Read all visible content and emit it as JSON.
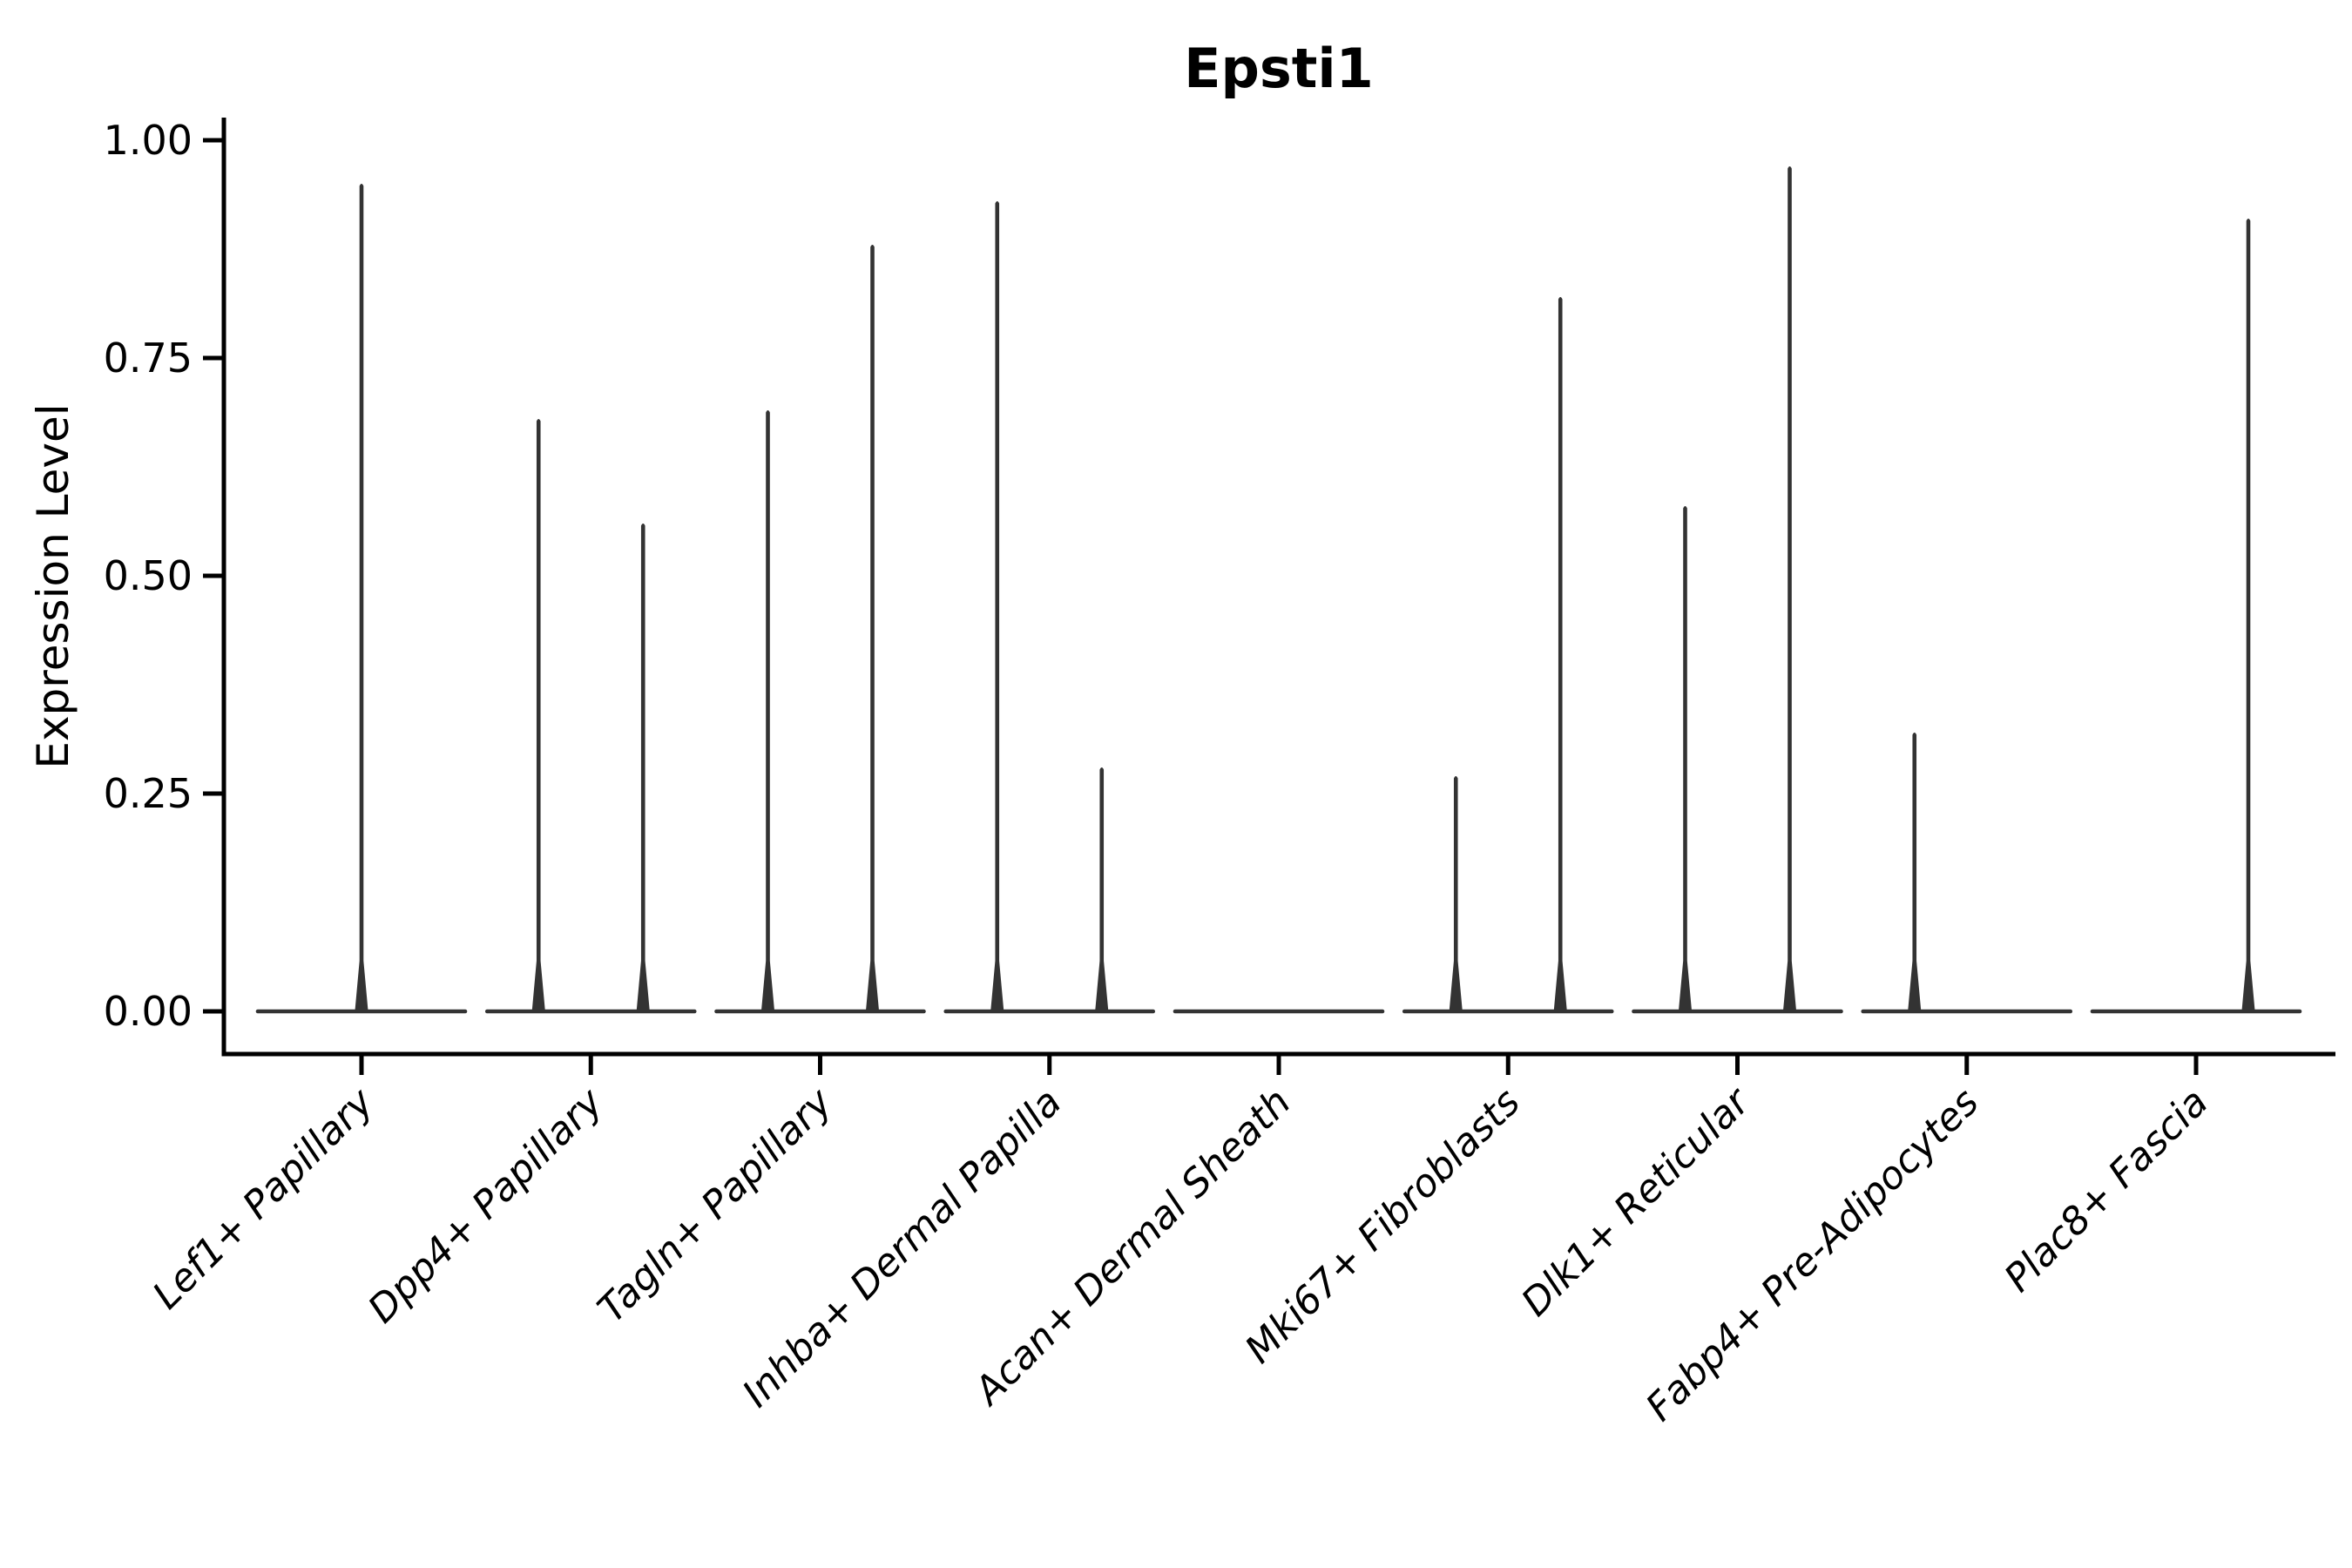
{
  "title": "Epsti1",
  "chart_data": {
    "type": "violin",
    "title": "Epsti1",
    "xlabel": "",
    "ylabel": "Expression Level",
    "ylim": [
      0,
      1.0
    ],
    "yticks": [
      0,
      0.25,
      0.5,
      0.75,
      1.0
    ],
    "ytick_labels": [
      "0.00",
      "0.25",
      "0.50",
      "0.75",
      "1.00"
    ],
    "grid": false,
    "legend_position": "none",
    "categories": [
      "Lef1+ Papillary",
      "Dpp4+ Papillary",
      "Tagln+ Papillary",
      "Inhba+ Dermal Papilla",
      "Acan+ Dermal Sheath",
      "Mki67+ Fibroblasts",
      "Dlk1+ Reticular",
      "Fabp4+ Pre-Adipocytes",
      "Plac8+ Fascia"
    ],
    "baseline_value": 0,
    "violins": [
      {
        "category": "Lef1+ Papillary",
        "spikes": [
          {
            "side": "center",
            "max": 0.95
          }
        ]
      },
      {
        "category": "Dpp4+ Papillary",
        "spikes": [
          {
            "side": "left",
            "max": 0.68
          },
          {
            "side": "right",
            "max": 0.56
          }
        ]
      },
      {
        "category": "Tagln+ Papillary",
        "spikes": [
          {
            "side": "left",
            "max": 0.69
          },
          {
            "side": "right",
            "max": 0.88
          }
        ]
      },
      {
        "category": "Inhba+ Dermal Papilla",
        "spikes": [
          {
            "side": "left",
            "max": 0.93
          },
          {
            "side": "right",
            "max": 0.28
          }
        ]
      },
      {
        "category": "Acan+ Dermal Sheath",
        "spikes": []
      },
      {
        "category": "Mki67+ Fibroblasts",
        "spikes": [
          {
            "side": "left",
            "max": 0.27
          },
          {
            "side": "right",
            "max": 0.82
          }
        ]
      },
      {
        "category": "Dlk1+ Reticular",
        "spikes": [
          {
            "side": "left",
            "max": 0.58
          },
          {
            "side": "right",
            "max": 0.97
          }
        ]
      },
      {
        "category": "Fabp4+ Pre-Adipocytes",
        "spikes": [
          {
            "side": "left",
            "max": 0.32
          }
        ]
      },
      {
        "category": "Plac8+ Fascia",
        "spikes": [
          {
            "side": "right",
            "max": 0.91
          }
        ]
      }
    ],
    "colors": {
      "violin_line": "#333333",
      "axis": "#000000",
      "text": "#000000",
      "background": "#ffffff"
    }
  }
}
